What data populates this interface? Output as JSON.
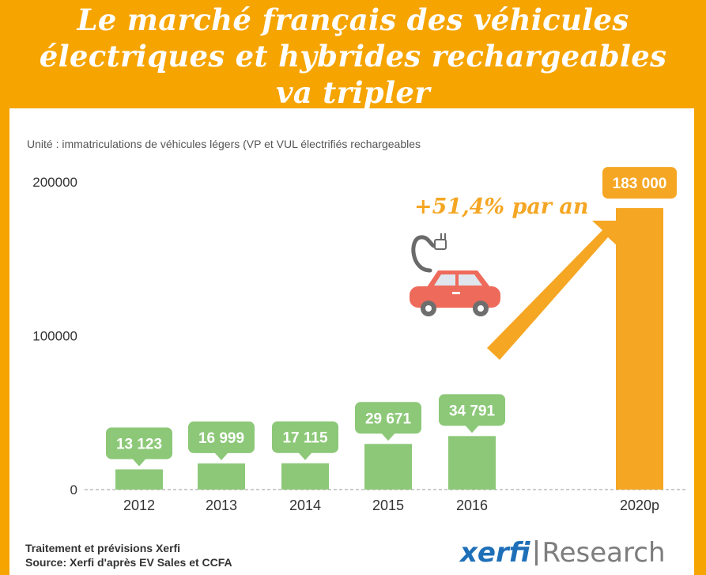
{
  "header": {
    "title_line1": "Le marché français des véhicules",
    "title_line2": "électriques et hybrides rechargeables",
    "title_line3": "va tripler"
  },
  "chart_data": {
    "type": "bar",
    "subtitle": "Unité : immatriculations de véhicules légers (VP et VUL électrifiés rechargeables",
    "categories": [
      "2012",
      "2013",
      "2014",
      "2015",
      "2016",
      "2020p"
    ],
    "values": [
      13123,
      16999,
      17115,
      29671,
      34791,
      183000
    ],
    "value_labels": [
      "13 123",
      "16 999",
      "17 115",
      "29 671",
      "34 791",
      "183 000"
    ],
    "ylim": [
      0,
      200000
    ],
    "yticks": [
      "0",
      "100000",
      "200000"
    ],
    "xlabel": "",
    "ylabel": "",
    "grid": false,
    "baseline": "dashed",
    "growth_annotation": "+51,4% par an",
    "colors": {
      "historical": "#8cc878",
      "forecast": "#f5a623",
      "annotation": "#f5a623"
    }
  },
  "illustration": {
    "icon": "electric-car-icon",
    "arrow": "growth-arrow-icon"
  },
  "footer": {
    "line1": "Traitement et prévisions Xerfi",
    "line2": "Source: Xerfi d'après EV Sales et CCFA"
  },
  "brand": {
    "name": "xerfi",
    "sub": "Research",
    "color": "#1e6fb8"
  },
  "colors": {
    "background": "#f6a400",
    "panel": "#ffffff",
    "car_body": "#ee6a5b",
    "car_window": "#dfe6ee",
    "wheel": "#6e6e6e"
  }
}
